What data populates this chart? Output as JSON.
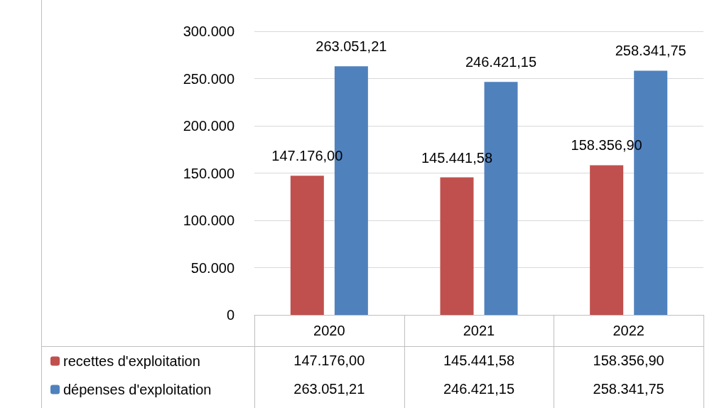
{
  "chart_data": {
    "type": "bar",
    "categories": [
      "2020",
      "2021",
      "2022"
    ],
    "series": [
      {
        "name": "recettes d'exploitation",
        "color": "#c0504d",
        "values": [
          147176.0,
          145441.58,
          158356.9
        ],
        "value_labels": [
          "147.176,00",
          "145.441,58",
          "158.356,90"
        ]
      },
      {
        "name": "dépenses d'exploitation",
        "color": "#4f81bd",
        "values": [
          263051.21,
          246421.15,
          258341.75
        ],
        "value_labels": [
          "263.051,21",
          "246.421,15",
          "258.341,75"
        ]
      }
    ],
    "ylim": [
      0,
      300000
    ],
    "yticks": [
      {
        "value": 0,
        "label": "0"
      },
      {
        "value": 50000,
        "label": "50.000"
      },
      {
        "value": 100000,
        "label": "100.000"
      },
      {
        "value": 150000,
        "label": "150.000"
      },
      {
        "value": 200000,
        "label": "200.000"
      },
      {
        "value": 250000,
        "label": "250.000"
      },
      {
        "value": 300000,
        "label": "300.000"
      }
    ],
    "grid": "y",
    "legend": "bottom left"
  }
}
